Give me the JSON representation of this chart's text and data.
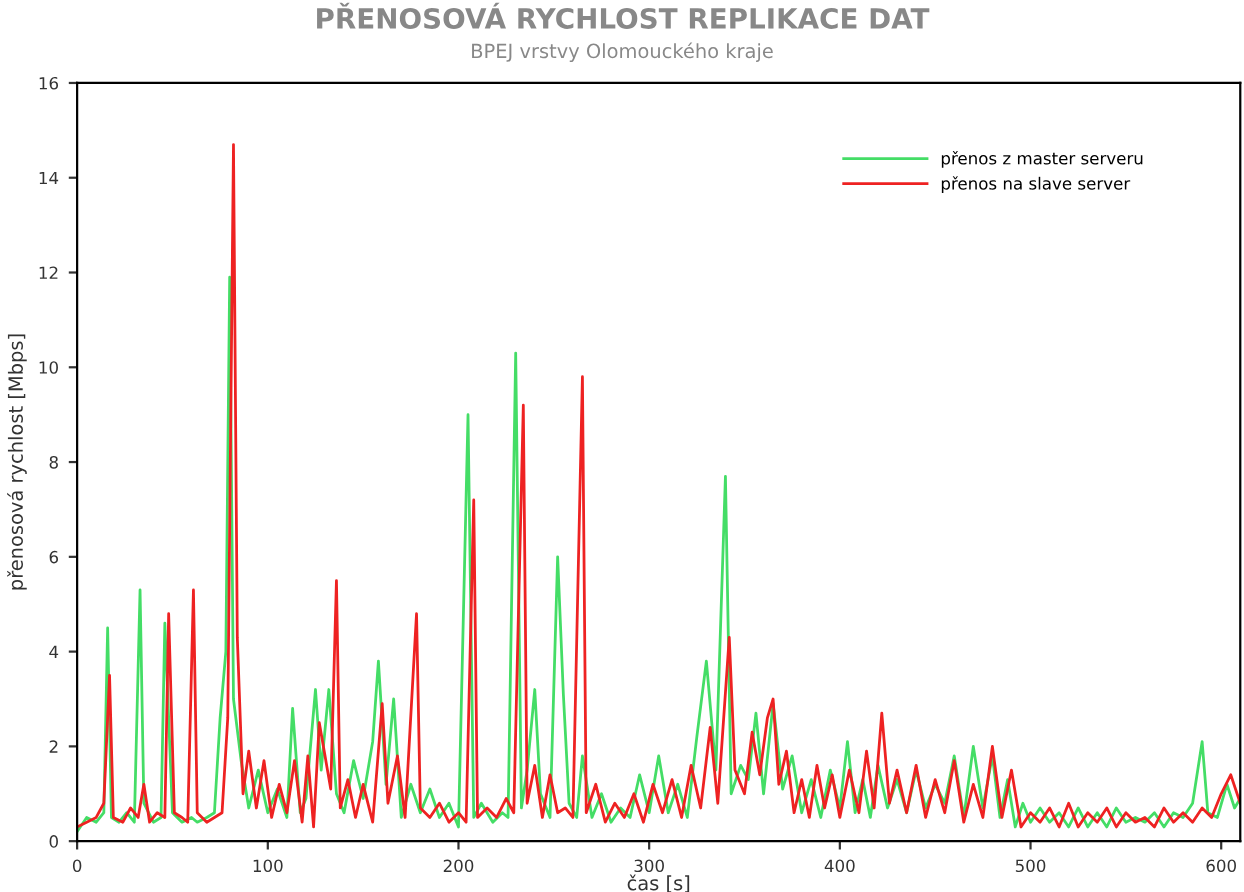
{
  "chart_data": {
    "type": "line",
    "title": "PŘENOSOVÁ RYCHLOST REPLIKACE DAT",
    "subtitle": "BPEJ vrstvy Olomouckého kraje",
    "xlabel": "čas [s]",
    "ylabel": "přenosová rychlost [Mbps]",
    "xlim": [
      0,
      610
    ],
    "xticks": [
      0,
      100,
      200,
      300,
      400,
      500,
      600
    ],
    "ylim": [
      0,
      16
    ],
    "yticks": [
      0,
      2,
      4,
      6,
      8,
      10,
      12,
      14,
      16
    ],
    "grid": false,
    "legend": "top right",
    "marker": "none",
    "line_style": "solid",
    "series": [
      {
        "name": "přenos z master serveru",
        "color": "#44dd66",
        "x": [
          0,
          5,
          10,
          14,
          16,
          18,
          22,
          26,
          30,
          33,
          35,
          40,
          44,
          46,
          50,
          55,
          60,
          63,
          68,
          72,
          75,
          78,
          80,
          82,
          86,
          90,
          95,
          100,
          105,
          110,
          113,
          117,
          120,
          125,
          128,
          132,
          136,
          140,
          145,
          150,
          155,
          158,
          162,
          166,
          170,
          175,
          180,
          185,
          190,
          195,
          200,
          205,
          208,
          212,
          218,
          223,
          226,
          230,
          233,
          236,
          240,
          243,
          248,
          252,
          255,
          258,
          262,
          265,
          270,
          275,
          280,
          285,
          290,
          295,
          300,
          305,
          310,
          315,
          320,
          325,
          330,
          335,
          340,
          343,
          348,
          352,
          356,
          360,
          365,
          370,
          375,
          380,
          385,
          390,
          395,
          400,
          404,
          408,
          412,
          416,
          420,
          425,
          430,
          435,
          440,
          445,
          450,
          455,
          460,
          465,
          470,
          475,
          480,
          484,
          488,
          492,
          496,
          500,
          505,
          510,
          515,
          520,
          525,
          530,
          535,
          540,
          545,
          550,
          555,
          560,
          565,
          570,
          575,
          580,
          585,
          590,
          593,
          598,
          603,
          607,
          610
        ],
        "values": [
          0.2,
          0.5,
          0.4,
          0.6,
          4.5,
          0.5,
          0.4,
          0.6,
          0.4,
          5.3,
          0.8,
          0.4,
          0.5,
          4.6,
          0.6,
          0.4,
          0.5,
          0.4,
          0.5,
          0.6,
          2.6,
          4.0,
          11.9,
          3.0,
          1.7,
          0.7,
          1.5,
          0.6,
          1.1,
          0.5,
          2.8,
          0.6,
          0.9,
          3.2,
          1.5,
          3.2,
          1.0,
          0.6,
          1.7,
          0.9,
          2.1,
          3.8,
          1.2,
          3.0,
          0.5,
          1.2,
          0.6,
          1.1,
          0.5,
          0.8,
          0.3,
          9.0,
          0.5,
          0.8,
          0.4,
          0.6,
          0.5,
          10.3,
          0.7,
          1.5,
          3.2,
          1.0,
          0.5,
          6.0,
          3.1,
          0.8,
          0.5,
          1.8,
          0.5,
          1.0,
          0.4,
          0.7,
          0.5,
          1.4,
          0.6,
          1.8,
          0.6,
          1.2,
          0.5,
          2.2,
          3.8,
          1.5,
          7.7,
          1.0,
          1.6,
          1.3,
          2.7,
          1.0,
          2.9,
          1.1,
          1.8,
          0.6,
          1.3,
          0.5,
          1.5,
          0.7,
          2.1,
          0.6,
          1.3,
          0.5,
          1.6,
          0.7,
          1.3,
          0.6,
          1.5,
          0.7,
          1.2,
          0.8,
          1.8,
          0.5,
          2.0,
          0.7,
          1.8,
          0.5,
          1.3,
          0.3,
          0.8,
          0.4,
          0.7,
          0.4,
          0.6,
          0.3,
          0.7,
          0.3,
          0.6,
          0.3,
          0.7,
          0.4,
          0.5,
          0.4,
          0.6,
          0.3,
          0.6,
          0.5,
          0.8,
          2.1,
          0.6,
          0.5,
          1.2,
          0.7,
          0.9
        ]
      },
      {
        "name": "přenos na slave server",
        "color": "#ee2222",
        "x": [
          0,
          5,
          10,
          14,
          17,
          19,
          24,
          28,
          32,
          35,
          38,
          42,
          46,
          48,
          51,
          55,
          58,
          61,
          63,
          68,
          72,
          76,
          79,
          82,
          84,
          87,
          90,
          94,
          98,
          102,
          106,
          110,
          114,
          118,
          121,
          124,
          127,
          130,
          133,
          136,
          138,
          142,
          146,
          150,
          155,
          160,
          163,
          168,
          172,
          178,
          180,
          185,
          190,
          195,
          200,
          204,
          208,
          210,
          215,
          220,
          225,
          229,
          234,
          236,
          240,
          244,
          248,
          252,
          256,
          260,
          265,
          267,
          272,
          277,
          282,
          287,
          292,
          297,
          302,
          307,
          312,
          317,
          322,
          327,
          332,
          336,
          342,
          345,
          350,
          354,
          358,
          362,
          365,
          368,
          372,
          376,
          380,
          384,
          388,
          392,
          396,
          400,
          405,
          410,
          414,
          418,
          422,
          426,
          430,
          435,
          440,
          445,
          450,
          455,
          460,
          465,
          470,
          475,
          480,
          485,
          490,
          495,
          500,
          505,
          510,
          515,
          520,
          525,
          530,
          535,
          540,
          545,
          550,
          555,
          560,
          565,
          570,
          575,
          580,
          585,
          590,
          595,
          600,
          605,
          610
        ],
        "values": [
          0.3,
          0.4,
          0.5,
          0.8,
          3.5,
          0.5,
          0.4,
          0.7,
          0.5,
          1.2,
          0.4,
          0.6,
          0.5,
          4.8,
          0.6,
          0.5,
          0.4,
          5.3,
          0.6,
          0.4,
          0.5,
          0.6,
          2.6,
          14.7,
          4.3,
          1.0,
          1.9,
          0.7,
          1.7,
          0.5,
          1.2,
          0.6,
          1.7,
          0.4,
          1.8,
          0.3,
          2.5,
          1.8,
          1.1,
          5.5,
          0.7,
          1.3,
          0.5,
          1.2,
          0.4,
          2.9,
          0.8,
          1.8,
          0.5,
          4.8,
          0.7,
          0.5,
          0.8,
          0.4,
          0.6,
          0.4,
          7.2,
          0.5,
          0.7,
          0.5,
          0.9,
          0.6,
          9.2,
          0.8,
          1.6,
          0.5,
          1.4,
          0.6,
          0.7,
          0.5,
          9.8,
          0.6,
          1.2,
          0.4,
          0.8,
          0.5,
          1.0,
          0.4,
          1.2,
          0.6,
          1.3,
          0.5,
          1.6,
          0.7,
          2.4,
          0.8,
          4.3,
          1.5,
          1.0,
          2.3,
          1.4,
          2.6,
          3.0,
          1.2,
          1.9,
          0.6,
          1.3,
          0.5,
          1.6,
          0.7,
          1.4,
          0.5,
          1.5,
          0.6,
          1.9,
          0.7,
          2.7,
          0.8,
          1.5,
          0.6,
          1.6,
          0.5,
          1.3,
          0.6,
          1.7,
          0.4,
          1.2,
          0.5,
          2.0,
          0.5,
          1.5,
          0.3,
          0.6,
          0.4,
          0.7,
          0.3,
          0.8,
          0.3,
          0.6,
          0.4,
          0.7,
          0.3,
          0.6,
          0.4,
          0.5,
          0.3,
          0.7,
          0.4,
          0.6,
          0.4,
          0.7,
          0.5,
          1.0,
          1.4,
          0.8
        ]
      }
    ]
  }
}
